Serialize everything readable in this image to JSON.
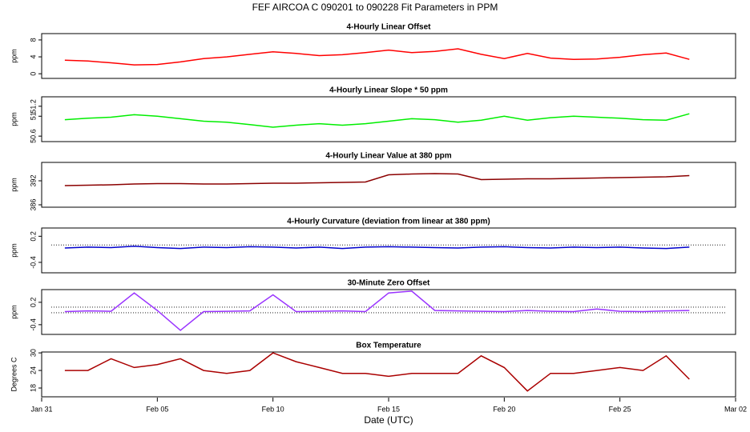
{
  "title": "FEF   AIRCOA C   090201 to 090228   Fit Parameters in PPM",
  "chart_data": [
    {
      "type": "line",
      "title": "4-Hourly Linear Offset",
      "ylabel": "ppm",
      "color": "#ff0000",
      "x": [
        "Feb 01",
        "Feb 02",
        "Feb 03",
        "Feb 04",
        "Feb 05",
        "Feb 06",
        "Feb 07",
        "Feb 08",
        "Feb 09",
        "Feb 10",
        "Feb 11",
        "Feb 12",
        "Feb 13",
        "Feb 14",
        "Feb 15",
        "Feb 16",
        "Feb 17",
        "Feb 18",
        "Feb 19",
        "Feb 20",
        "Feb 21",
        "Feb 22",
        "Feb 23",
        "Feb 24",
        "Feb 25",
        "Feb 26",
        "Feb 27",
        "Feb 28"
      ],
      "values": [
        3.2,
        3.0,
        2.6,
        2.1,
        2.2,
        2.8,
        3.6,
        4.0,
        4.6,
        5.2,
        4.8,
        4.3,
        4.5,
        5.0,
        5.6,
        5.0,
        5.3,
        5.9,
        4.6,
        3.6,
        4.8,
        3.7,
        3.4,
        3.5,
        3.9,
        4.5,
        4.9,
        3.4
      ],
      "ylim": [
        -1.1,
        9.5
      ],
      "yticks": [
        0,
        4,
        8
      ]
    },
    {
      "type": "line",
      "title": "4-Hourly Linear Slope * 50 ppm",
      "ylabel": "ppm",
      "color": "#00ee00",
      "x": [
        "Feb 01",
        "Feb 02",
        "Feb 03",
        "Feb 04",
        "Feb 05",
        "Feb 06",
        "Feb 07",
        "Feb 08",
        "Feb 09",
        "Feb 10",
        "Feb 11",
        "Feb 12",
        "Feb 13",
        "Feb 14",
        "Feb 15",
        "Feb 16",
        "Feb 17",
        "Feb 18",
        "Feb 19",
        "Feb 20",
        "Feb 21",
        "Feb 22",
        "Feb 23",
        "Feb 24",
        "Feb 25",
        "Feb 26",
        "Feb 27",
        "Feb 28"
      ],
      "values": [
        50.93,
        50.96,
        50.98,
        51.03,
        51.0,
        50.95,
        50.9,
        50.88,
        50.83,
        50.78,
        50.82,
        50.85,
        50.82,
        50.85,
        50.9,
        50.95,
        50.93,
        50.88,
        50.92,
        51.0,
        50.92,
        50.97,
        51.0,
        50.98,
        50.96,
        50.93,
        50.92,
        51.05
      ],
      "ylim": [
        50.49,
        51.39
      ],
      "yticks": [
        50.6,
        51,
        51.2
      ]
    },
    {
      "type": "line",
      "title": "4-Hourly Linear Value at 380 ppm",
      "ylabel": "ppm",
      "color": "#8b0000",
      "x": [
        "Feb 01",
        "Feb 02",
        "Feb 03",
        "Feb 04",
        "Feb 05",
        "Feb 06",
        "Feb 07",
        "Feb 08",
        "Feb 09",
        "Feb 10",
        "Feb 11",
        "Feb 12",
        "Feb 13",
        "Feb 14",
        "Feb 15",
        "Feb 16",
        "Feb 17",
        "Feb 18",
        "Feb 19",
        "Feb 20",
        "Feb 21",
        "Feb 22",
        "Feb 23",
        "Feb 24",
        "Feb 25",
        "Feb 26",
        "Feb 27",
        "Feb 28"
      ],
      "values": [
        390.8,
        390.9,
        391.0,
        391.2,
        391.3,
        391.3,
        391.2,
        391.2,
        391.3,
        391.4,
        391.4,
        391.5,
        391.6,
        391.7,
        393.5,
        393.7,
        393.8,
        393.7,
        392.3,
        392.4,
        392.5,
        392.5,
        392.6,
        392.7,
        392.8,
        392.9,
        393.0,
        393.3
      ],
      "ylim": [
        385.4,
        396.6
      ],
      "yticks": [
        386,
        392
      ]
    },
    {
      "type": "line",
      "title": "4-Hourly Curvature (deviation from linear at 380 ppm)",
      "ylabel": "ppm",
      "color": "#0000cc",
      "x": [
        "Feb 01",
        "Feb 02",
        "Feb 03",
        "Feb 04",
        "Feb 05",
        "Feb 06",
        "Feb 07",
        "Feb 08",
        "Feb 09",
        "Feb 10",
        "Feb 11",
        "Feb 12",
        "Feb 13",
        "Feb 14",
        "Feb 15",
        "Feb 16",
        "Feb 17",
        "Feb 18",
        "Feb 19",
        "Feb 20",
        "Feb 21",
        "Feb 22",
        "Feb 23",
        "Feb 24",
        "Feb 25",
        "Feb 26",
        "Feb 27",
        "Feb 28"
      ],
      "values": [
        -0.07,
        -0.05,
        -0.06,
        -0.03,
        -0.06,
        -0.08,
        -0.05,
        -0.06,
        -0.04,
        -0.05,
        -0.07,
        -0.05,
        -0.08,
        -0.05,
        -0.04,
        -0.05,
        -0.06,
        -0.07,
        -0.05,
        -0.04,
        -0.06,
        -0.07,
        -0.05,
        -0.06,
        -0.05,
        -0.07,
        -0.08,
        -0.05
      ],
      "reference_lines": [
        0
      ],
      "ylim": [
        -0.64,
        0.39
      ],
      "yticks": [
        -0.4,
        0.2
      ]
    },
    {
      "type": "line",
      "title": "30-Minute Zero Offset",
      "ylabel": "ppm",
      "color": "#9933ff",
      "x": [
        "Feb 01",
        "Feb 02",
        "Feb 03",
        "Feb 04",
        "Feb 05",
        "Feb 06",
        "Feb 07",
        "Feb 08",
        "Feb 09",
        "Feb 10",
        "Feb 11",
        "Feb 12",
        "Feb 13",
        "Feb 14",
        "Feb 15",
        "Feb 16",
        "Feb 17",
        "Feb 18",
        "Feb 19",
        "Feb 20",
        "Feb 21",
        "Feb 22",
        "Feb 23",
        "Feb 24",
        "Feb 25",
        "Feb 26",
        "Feb 27",
        "Feb 28"
      ],
      "values": [
        -0.05,
        -0.03,
        -0.04,
        0.45,
        -0.02,
        -0.55,
        -0.05,
        -0.04,
        -0.03,
        0.4,
        -0.05,
        -0.04,
        -0.03,
        -0.05,
        0.45,
        0.5,
        -0.02,
        -0.03,
        -0.04,
        -0.05,
        -0.02,
        -0.04,
        -0.05,
        0.02,
        -0.04,
        -0.05,
        -0.03,
        -0.02
      ],
      "reference_lines": [
        0.07,
        -0.08
      ],
      "ylim": [
        -0.66,
        0.54
      ],
      "yticks": [
        -0.4,
        0.2
      ]
    },
    {
      "type": "line",
      "title": "Box Temperature",
      "ylabel": "Degrees C",
      "color": "#aa0000",
      "x": [
        "Feb 01",
        "Feb 02",
        "Feb 03",
        "Feb 04",
        "Feb 05",
        "Feb 06",
        "Feb 07",
        "Feb 08",
        "Feb 09",
        "Feb 10",
        "Feb 11",
        "Feb 12",
        "Feb 13",
        "Feb 14",
        "Feb 15",
        "Feb 16",
        "Feb 17",
        "Feb 18",
        "Feb 19",
        "Feb 20",
        "Feb 21",
        "Feb 22",
        "Feb 23",
        "Feb 24",
        "Feb 25",
        "Feb 26",
        "Feb 27",
        "Feb 28"
      ],
      "values": [
        24,
        24,
        28,
        25,
        26,
        28,
        24,
        23,
        24,
        30,
        27,
        25,
        23,
        23,
        22,
        23,
        23,
        23,
        29,
        25,
        17,
        23,
        23,
        24,
        25,
        24,
        29,
        21
      ],
      "ylim": [
        15.0,
        30.3
      ],
      "yticks": [
        18,
        24,
        30
      ],
      "xlabel": "Date (UTC)",
      "xlim": [
        "Jan 31",
        "Mar 02"
      ],
      "xticks": [
        "Jan 31",
        "Feb 05",
        "Feb 10",
        "Feb 15",
        "Feb 20",
        "Feb 25",
        "Mar 02"
      ]
    }
  ]
}
